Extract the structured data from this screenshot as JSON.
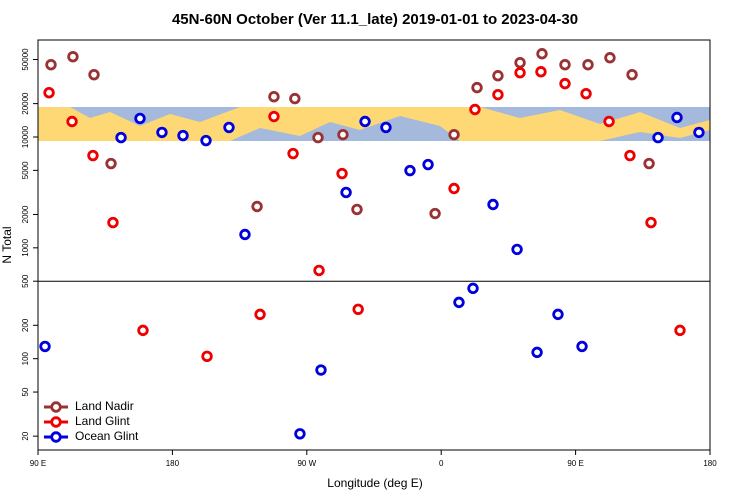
{
  "chart_data": {
    "type": "scatter",
    "title": "45N-60N October (Ver 11.1_late)   2019-01-01 to 2023-04-30",
    "x_label": "Longitude (deg E)",
    "y_label": "N Total",
    "xlim": [
      90,
      540
    ],
    "xticks": [
      {
        "value": 90,
        "label": "90 E"
      },
      {
        "value": 180,
        "label": "180"
      },
      {
        "value": 270,
        "label": "90 W"
      },
      {
        "value": 360,
        "label": "0"
      },
      {
        "value": 450,
        "label": "90 E"
      },
      {
        "value": 540,
        "label": "180"
      }
    ],
    "ylim": [
      15,
      75000
    ],
    "log_y": true,
    "yticks": [
      20,
      50,
      100,
      200,
      500,
      1000,
      2000,
      5000,
      10000,
      20000,
      50000
    ],
    "hline": 500,
    "legend": "lower left",
    "series": [
      {
        "name": "Land Nadir",
        "color": "#993333",
        "x": [
          98.7,
          113.4,
          127.5,
          138.9,
          236.7,
          248,
          262,
          277.5,
          294.2,
          303.6,
          355.9,
          368.6,
          384,
          398,
          412.8,
          427.5,
          442.9,
          458.3,
          473,
          487.8,
          499.2
        ],
        "values": [
          44900,
          53000,
          36500,
          5760,
          2360,
          23100,
          22200,
          9880,
          10500,
          2220,
          2040,
          10500,
          27900,
          35700,
          46800,
          56400,
          44900,
          44900,
          51900,
          36500,
          5760
        ]
      },
      {
        "name": "Land Glint",
        "color": "#ee0000",
        "x": [
          97.4,
          112.8,
          126.8,
          140.2,
          160.3,
          203.2,
          238.7,
          248,
          260.8,
          278.2,
          293.6,
          304.4,
          368.6,
          382.6,
          398,
          412.8,
          426.8,
          442.9,
          457,
          472.4,
          486.4,
          500.5,
          519.9
        ],
        "values": [
          25100,
          13800,
          6800,
          1690,
          180,
          105,
          251,
          15300,
          7090,
          625,
          4680,
          279,
          3430,
          17700,
          24100,
          38000,
          38800,
          30300,
          24600,
          13800,
          6800,
          1690,
          180
        ]
      },
      {
        "name": "Ocean Glint",
        "color": "#0000dd",
        "x": [
          94.7,
          145.6,
          158.3,
          173,
          187.1,
          202.5,
          217.9,
          228.6,
          265.4,
          279.5,
          296.3,
          309,
          323,
          339.1,
          351.2,
          371.9,
          381.3,
          394.7,
          410.8,
          424.2,
          438.2,
          454.3,
          505.2,
          517.9,
          532.6
        ],
        "values": [
          129,
          9880,
          14700,
          11000,
          10300,
          9290,
          12200,
          1320,
          21,
          79,
          3160,
          13800,
          12200,
          4980,
          5640,
          322,
          431,
          2460,
          968,
          114,
          251,
          129,
          9880,
          15000,
          11000
        ]
      }
    ]
  }
}
